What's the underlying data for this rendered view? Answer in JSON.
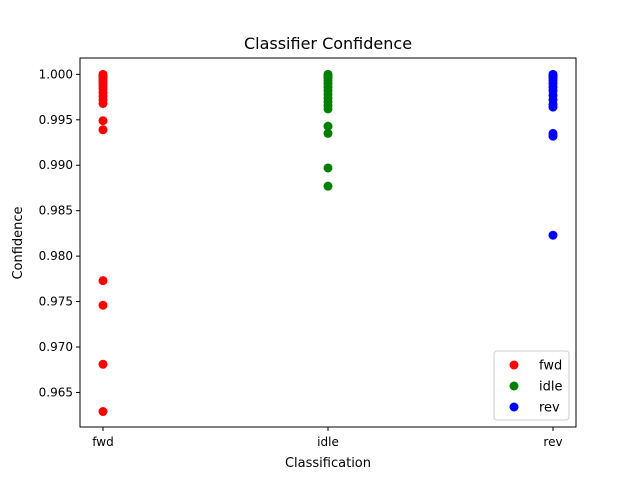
{
  "chart_data": {
    "type": "scatter",
    "title": "Classifier Confidence",
    "xlabel": "Classification",
    "ylabel": "Confidence",
    "categories": [
      "fwd",
      "idle",
      "rev"
    ],
    "ylim": [
      0.9612,
      1.0018
    ],
    "yticks": [
      0.965,
      0.97,
      0.975,
      0.98,
      0.985,
      0.99,
      0.995,
      1.0
    ],
    "ytick_labels": [
      "0.965",
      "0.970",
      "0.975",
      "0.980",
      "0.985",
      "0.990",
      "0.995",
      "1.000"
    ],
    "grid": false,
    "legend_position": "bottom-right",
    "series": [
      {
        "name": "fwd",
        "color": "#ff0000",
        "x": "fwd",
        "values": [
          1.0,
          0.9999,
          0.9998,
          0.9996,
          0.9994,
          0.9992,
          0.999,
          0.9987,
          0.9984,
          0.998,
          0.9976,
          0.9972,
          0.9968,
          0.9949,
          0.9939,
          0.9773,
          0.9746,
          0.9681,
          0.9629
        ]
      },
      {
        "name": "idle",
        "color": "#008000",
        "x": "idle",
        "values": [
          1.0,
          0.9999,
          0.9998,
          0.9996,
          0.9993,
          0.999,
          0.9986,
          0.9982,
          0.9978,
          0.9974,
          0.997,
          0.9966,
          0.9962,
          0.9943,
          0.9935,
          0.9897,
          0.9877
        ]
      },
      {
        "name": "rev",
        "color": "#0000ff",
        "x": "rev",
        "values": [
          1.0,
          0.9999,
          0.9998,
          0.9996,
          0.9993,
          0.999,
          0.9986,
          0.9982,
          0.9977,
          0.9972,
          0.9967,
          0.9964,
          0.9935,
          0.9932,
          0.9823
        ]
      }
    ]
  }
}
